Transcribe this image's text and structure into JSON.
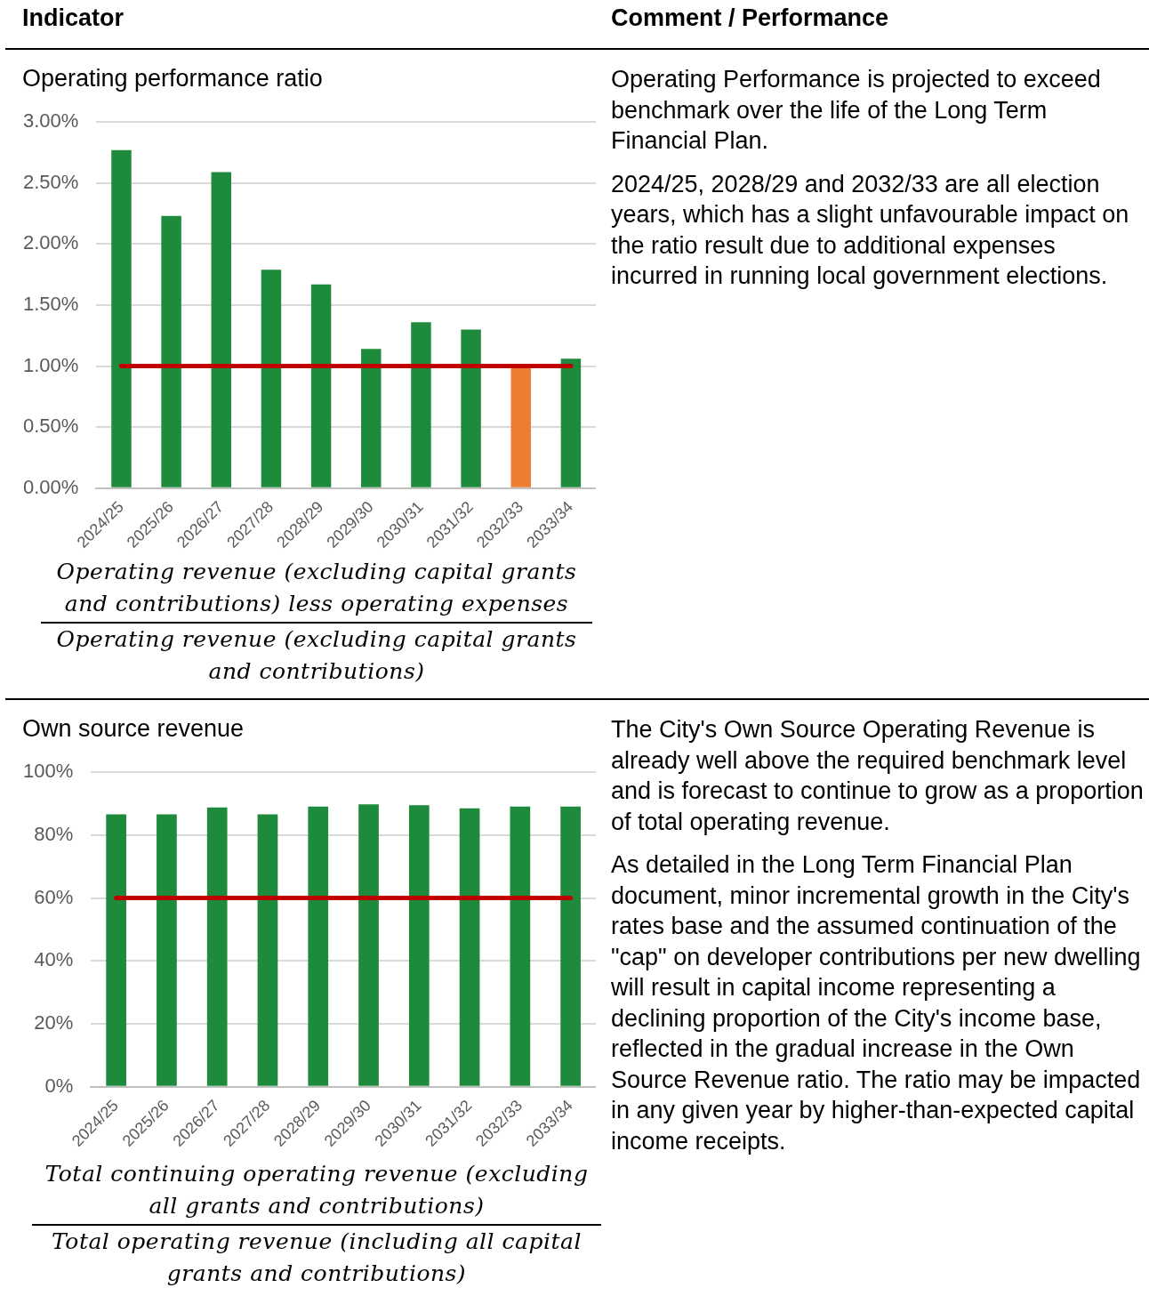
{
  "chart_data": [
    {
      "type": "other",
      "annotations": [
        "Indicator",
        "Comment / Performance"
      ]
    },
    {
      "type": "bar",
      "title": "Operating performance ratio",
      "categories": [
        "2024/25",
        "2025/26",
        "2026/27",
        "2027/28",
        "2028/29",
        "2029/30",
        "2030/31",
        "2031/32",
        "2032/33",
        "2033/34"
      ],
      "values": [
        2.77,
        2.23,
        2.59,
        1.79,
        1.67,
        1.14,
        1.36,
        1.3,
        1.0,
        1.06
      ],
      "colors": [
        "#1e8b3c",
        "#1e8b3c",
        "#1e8b3c",
        "#1e8b3c",
        "#1e8b3c",
        "#1e8b3c",
        "#1e8b3c",
        "#1e8b3c",
        "#ed7d31",
        "#1e8b3c"
      ],
      "ylim": [
        0,
        3
      ],
      "yticks": [
        {
          "value": 0,
          "label": "0.00%"
        },
        {
          "value": 0.5,
          "label": "0.50%"
        },
        {
          "value": 1,
          "label": "1.00%"
        },
        {
          "value": 1.5,
          "label": "1.50%"
        },
        {
          "value": 2,
          "label": "2.00%"
        },
        {
          "value": 2.5,
          "label": "2.50%"
        },
        {
          "value": 3,
          "label": "3.00%"
        }
      ],
      "grid": "y",
      "legend": false,
      "ref_lines": [
        {
          "axis": "y",
          "value": 1,
          "color": "#c00000"
        }
      ],
      "annotations": [
        "Operating revenue (excluding capital grants and contributions) less operating expenses",
        "Operating revenue (excluding capital grants and contributions)"
      ]
    },
    {
      "type": "other",
      "annotations": [
        "Operating Performance is projected to exceed benchmark over the life of the Long Term Financial Plan.",
        "2024/25, 2028/29 and 2032/33 are all election years, which has a slight unfavourable impact on the ratio result due to additional expenses incurred in running local government elections."
      ]
    },
    {
      "type": "bar",
      "title": "Own source revenue",
      "categories": [
        "2024/25",
        "2025/26",
        "2026/27",
        "2027/28",
        "2028/29",
        "2029/30",
        "2030/31",
        "2031/32",
        "2032/33",
        "2033/34"
      ],
      "values": [
        86.6,
        86.6,
        88.8,
        86.6,
        89.1,
        89.8,
        89.5,
        88.5,
        89.1,
        89.1
      ],
      "color": "#1e8b3c",
      "ylim": [
        0,
        100
      ],
      "yticks": [
        {
          "value": 0,
          "label": "0%"
        },
        {
          "value": 20,
          "label": "20%"
        },
        {
          "value": 40,
          "label": "40%"
        },
        {
          "value": 60,
          "label": "60%"
        },
        {
          "value": 80,
          "label": "80%"
        },
        {
          "value": 100,
          "label": "100%"
        }
      ],
      "grid": "y",
      "legend": false,
      "ref_lines": [
        {
          "axis": "y",
          "value": 60,
          "color": "#c00000"
        }
      ],
      "annotations": [
        "Total continuing operating revenue (excluding all grants and contributions)",
        "Total operating revenue (including all capital grants and contributions)"
      ]
    },
    {
      "type": "other",
      "annotations": [
        "The City's Own Source Operating Revenue is already well above the required benchmark level and is forecast to continue to grow as a proportion of total operating revenue.",
        "As detailed in the Long Term Financial Plan document, minor incremental growth in the City's rates base and the assumed continuation of the \"cap\" on developer contributions per new dwelling will result in capital income representing a declining proportion of the City's income base, reflected in the gradual increase in the Own Source Revenue ratio. The ratio may be impacted in any given year by higher-than-expected capital income receipts."
      ]
    }
  ]
}
